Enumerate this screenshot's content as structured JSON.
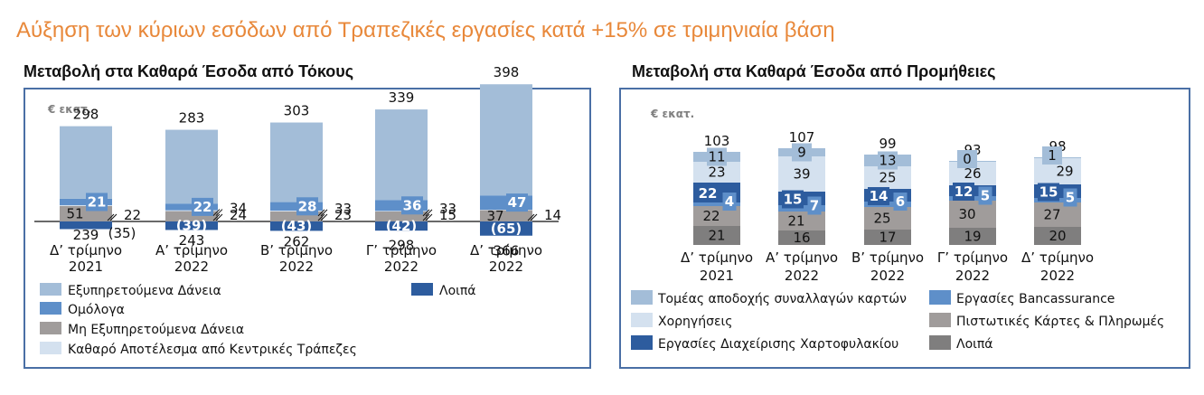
{
  "headline": "Αύξηση των κύριων εσόδων από Τραπεζικές εργασίες κατά +15% σε τριμηνιαία βάση",
  "colors": {
    "loans": "#A3BDD8",
    "bonds": "#5E8FC9",
    "npl": "#A09C9B",
    "central": "#D4E1EF",
    "other_nii": "#2D5C9E",
    "cards_acq": "#A3BDD8",
    "lending": "#D4E1EF",
    "asset_mgmt": "#2D5C9E",
    "bancass": "#5E8FC9",
    "credit_cards": "#A09C9B",
    "other_fee": "#7F7E7E"
  },
  "chart_data": [
    {
      "type": "bar",
      "stacked": true,
      "title": "Μεταβολή στα Καθαρά Έσοδα από Τόκους",
      "unit": "€ εκατ.",
      "categories": [
        [
          "Δ’ τρίμηνο",
          "2021"
        ],
        [
          "Α’ τρίμηνο",
          "2022"
        ],
        [
          "Β’ τρίμηνο",
          "2022"
        ],
        [
          "Γ’ τρίμηνο",
          "2022"
        ],
        [
          "Δ’ τρίμηνο",
          "2022"
        ]
      ],
      "totals": [
        298,
        283,
        303,
        339,
        398
      ],
      "series": [
        {
          "name": "Εξυπηρετούμενα Δάνεια",
          "color_key": "loans",
          "values": [
            239,
            243,
            262,
            298,
            366
          ]
        },
        {
          "name": "Ομόλογα",
          "color_key": "bonds",
          "values": [
            21,
            22,
            28,
            36,
            47
          ]
        },
        {
          "name": "Μη Εξυπηρετούμενα Δάνεια",
          "color_key": "npl",
          "values": [
            51,
            34,
            33,
            33,
            37
          ]
        },
        {
          "name": "Καθαρό Αποτέλεσμα από Κεντρικές Τράπεζες",
          "color_key": "central",
          "values": [
            22,
            24,
            23,
            15,
            14
          ]
        },
        {
          "name": "Λοιπά",
          "color_key": "other_nii",
          "values": [
            -35,
            -39,
            -43,
            -42,
            -65
          ]
        }
      ],
      "value_labels": [
        {
          "loans": "239",
          "bonds": "21",
          "npl": "51",
          "central": "22",
          "other": "(35)"
        },
        {
          "loans": "243",
          "bonds": "22",
          "npl": "34",
          "central": "24",
          "other": "(39)"
        },
        {
          "loans": "262",
          "bonds": "28",
          "npl": "33",
          "central": "23",
          "other": "(43)"
        },
        {
          "loans": "298",
          "bonds": "36",
          "npl": "33",
          "central": "15",
          "other": "(42)"
        },
        {
          "loans": "366",
          "bonds": "47",
          "npl": "37",
          "central": "14",
          "other": "(65)"
        }
      ],
      "legend": [
        "Εξυπηρετούμενα Δάνεια",
        "Λοιπά",
        "Ομόλογα",
        "Μη Εξυπηρετούμενα Δάνεια",
        "Καθαρό Αποτέλεσμα από Κεντρικές Τράπεζες"
      ]
    },
    {
      "type": "bar",
      "stacked": true,
      "title": "Μεταβολή στα Καθαρά Έσοδα από Προμήθειες",
      "unit": "€ εκατ.",
      "categories": [
        [
          "Δ’ τρίμηνο",
          "2021"
        ],
        [
          "Α’ τρίμηνο",
          "2022"
        ],
        [
          "Β’ τρίμηνο",
          "2022"
        ],
        [
          "Γ’ τρίμηνο",
          "2022"
        ],
        [
          "Δ’ τρίμηνο",
          "2022"
        ]
      ],
      "totals": [
        103,
        107,
        99,
        93,
        98
      ],
      "series": [
        {
          "name": "Λοιπά",
          "color_key": "other_fee",
          "values": [
            21,
            16,
            17,
            19,
            20
          ]
        },
        {
          "name": "Πιστωτικές Κάρτες & Πληρωμές",
          "color_key": "credit_cards",
          "values": [
            22,
            21,
            25,
            30,
            27
          ]
        },
        {
          "name": "Εργασίες Bancassurance",
          "color_key": "bancass",
          "values": [
            4,
            7,
            6,
            5,
            5
          ]
        },
        {
          "name": "Εργασίες Διαχείρισης Χαρτοφυλακίου",
          "color_key": "asset_mgmt",
          "values": [
            22,
            15,
            14,
            12,
            15
          ]
        },
        {
          "name": "Χορηγήσεις",
          "color_key": "lending",
          "values": [
            23,
            39,
            25,
            26,
            29
          ]
        },
        {
          "name": "Τομέας αποδοχής συναλλαγών καρτών",
          "color_key": "cards_acq",
          "values": [
            11,
            9,
            13,
            0,
            1
          ]
        }
      ],
      "legend": [
        "Τομέας αποδοχής συναλλαγών καρτών",
        "Εργασίες Bancassurance",
        "Χορηγήσεις",
        "Πιστωτικές Κάρτες & Πληρωμές",
        "Εργασίες Διαχείρισης Χαρτοφυλακίου",
        "Λοιπά"
      ]
    }
  ]
}
